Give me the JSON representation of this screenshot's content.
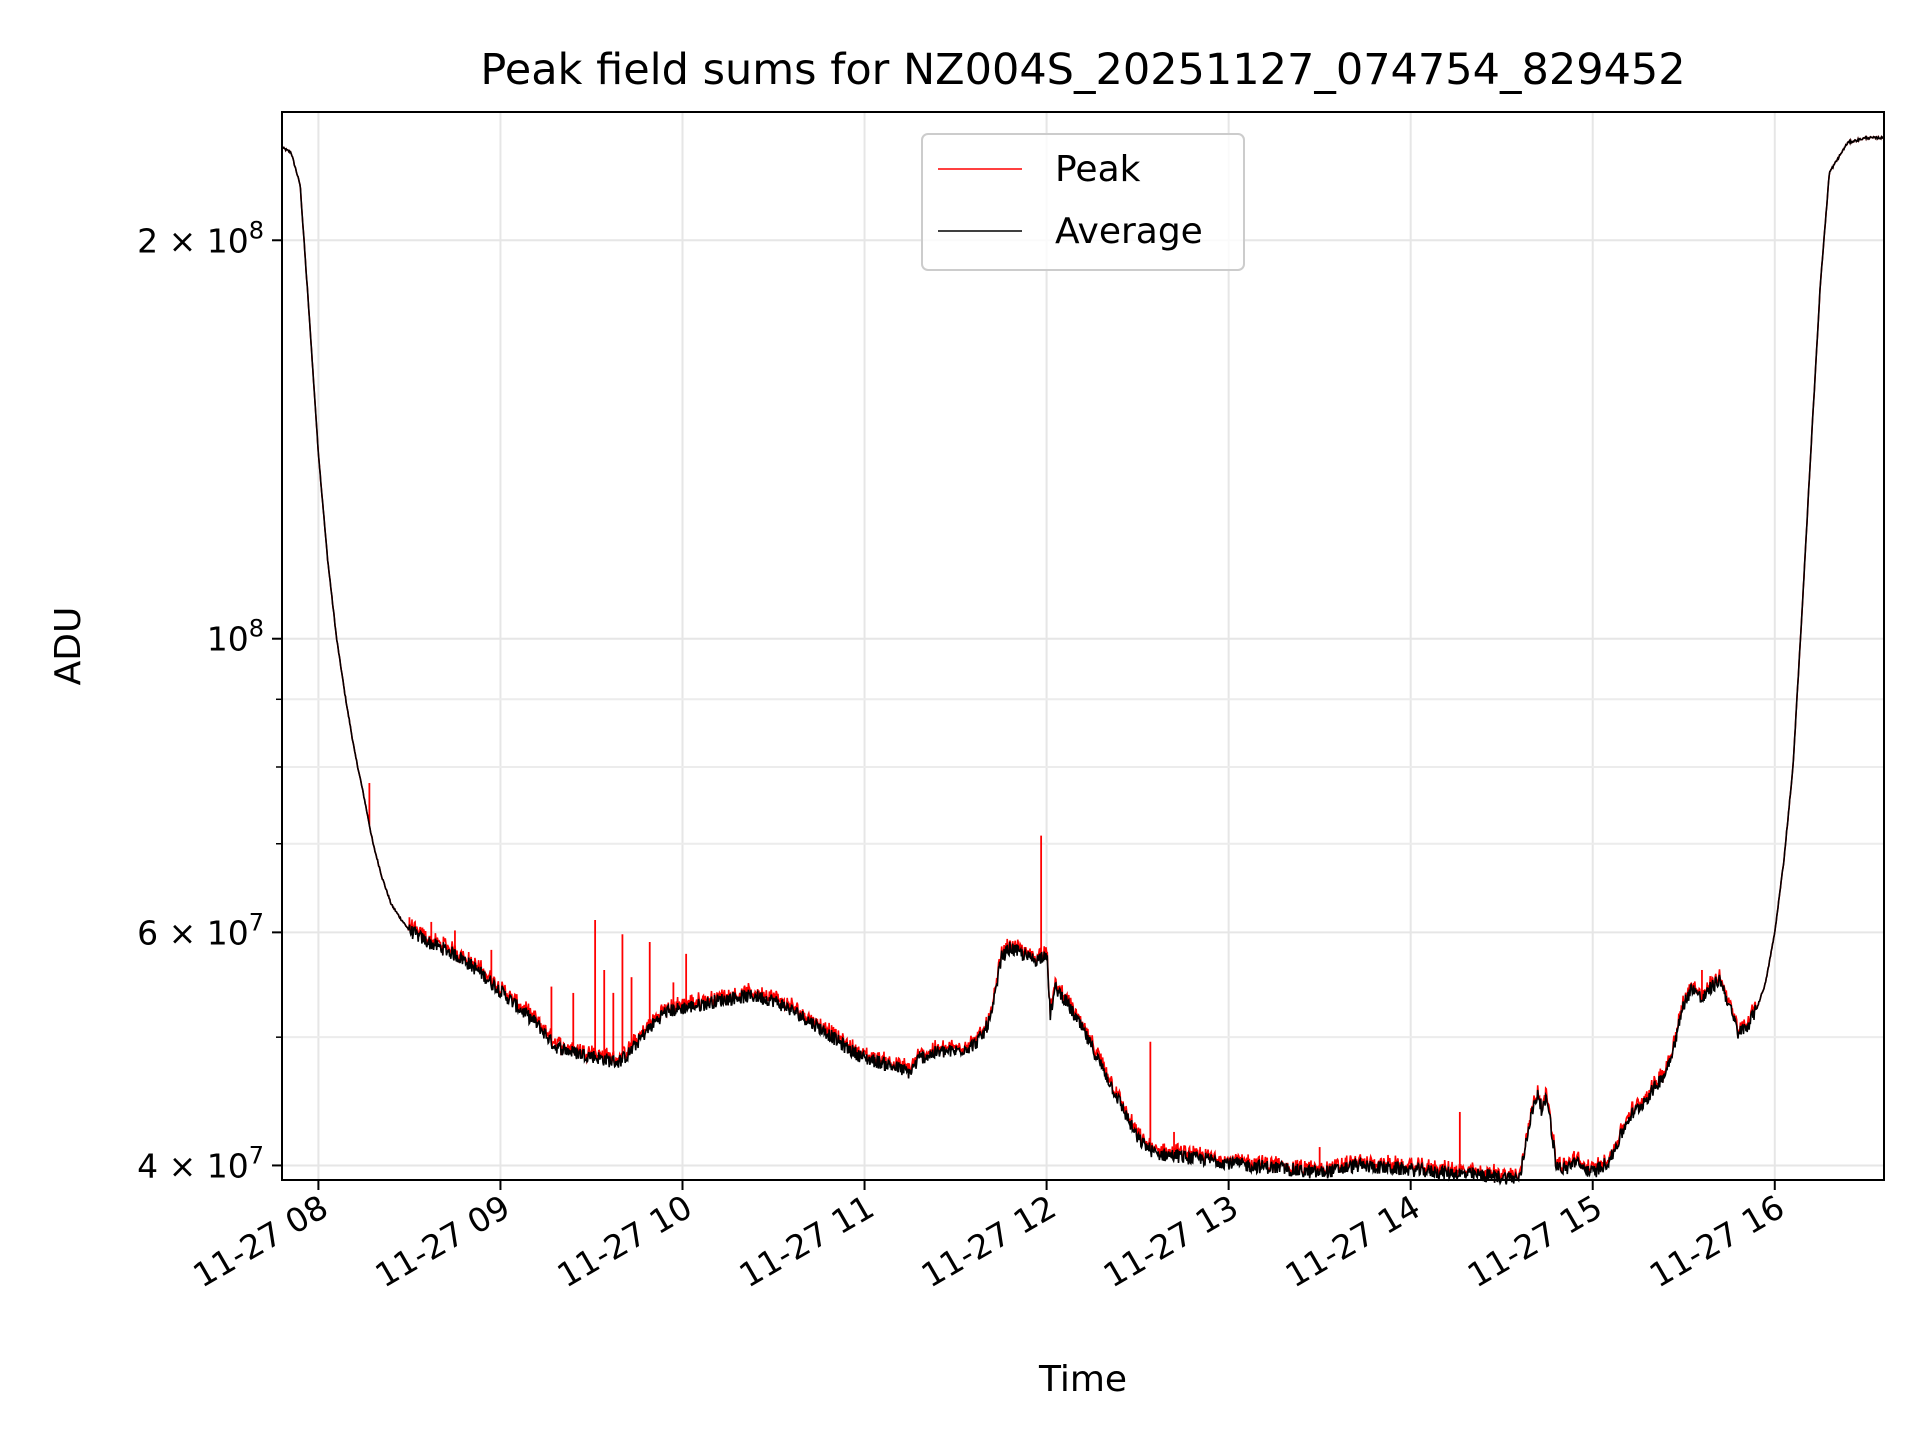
{
  "chart_data": {
    "type": "line",
    "title": "Peak field sums for NZ004S_20251127_074754_829452",
    "xlabel": "Time",
    "ylabel": "ADU",
    "yscale": "log",
    "grid": true,
    "legend_position": "top-center",
    "xlim_hours": [
      7.8,
      16.6
    ],
    "ylim": [
      39000000,
      250000000
    ],
    "x_ticks": [
      {
        "hour": 8,
        "label": "11-27 08"
      },
      {
        "hour": 9,
        "label": "11-27 09"
      },
      {
        "hour": 10,
        "label": "11-27 10"
      },
      {
        "hour": 11,
        "label": "11-27 11"
      },
      {
        "hour": 12,
        "label": "11-27 12"
      },
      {
        "hour": 13,
        "label": "11-27 13"
      },
      {
        "hour": 14,
        "label": "11-27 14"
      },
      {
        "hour": 15,
        "label": "11-27 15"
      },
      {
        "hour": 16,
        "label": "11-27 16"
      }
    ],
    "y_major_ticks": [
      {
        "value": 40000000,
        "base": "4 × 10",
        "exp": "7"
      },
      {
        "value": 60000000,
        "base": "6 × 10",
        "exp": "7"
      },
      {
        "value": 100000000,
        "base": "10",
        "exp": "8"
      },
      {
        "value": 200000000,
        "base": "2 × 10",
        "exp": "8"
      }
    ],
    "y_minor_ticks": [
      50000000,
      70000000,
      80000000,
      90000000
    ],
    "series": [
      {
        "name": "Average",
        "color": "#000000",
        "hours": [
          7.8,
          7.85,
          7.9,
          7.95,
          8.0,
          8.05,
          8.1,
          8.15,
          8.2,
          8.25,
          8.3,
          8.35,
          8.4,
          8.45,
          8.5,
          8.55,
          8.6,
          8.7,
          8.8,
          8.9,
          9.0,
          9.1,
          9.2,
          9.3,
          9.4,
          9.5,
          9.6,
          9.65,
          9.7,
          9.8,
          9.9,
          10.0,
          10.1,
          10.2,
          10.3,
          10.4,
          10.5,
          10.6,
          10.7,
          10.8,
          10.9,
          11.0,
          11.1,
          11.2,
          11.25,
          11.3,
          11.4,
          11.5,
          11.6,
          11.65,
          11.7,
          11.75,
          11.8,
          11.85,
          11.9,
          11.95,
          12.0,
          12.02,
          12.05,
          12.1,
          12.2,
          12.3,
          12.4,
          12.5,
          12.6,
          12.7,
          12.8,
          12.9,
          13.0,
          13.1,
          13.2,
          13.3,
          13.4,
          13.5,
          13.6,
          13.7,
          13.8,
          13.9,
          14.0,
          14.1,
          14.2,
          14.3,
          14.4,
          14.5,
          14.6,
          14.65,
          14.7,
          14.72,
          14.75,
          14.8,
          14.85,
          14.9,
          14.95,
          15.0,
          15.05,
          15.1,
          15.15,
          15.2,
          15.25,
          15.3,
          15.35,
          15.4,
          15.45,
          15.5,
          15.55,
          15.6,
          15.65,
          15.7,
          15.75,
          15.8,
          15.85,
          15.9,
          15.95,
          16.0,
          16.05,
          16.1,
          16.15,
          16.2,
          16.25,
          16.3,
          16.4,
          16.5,
          16.6
        ],
        "values": [
          235000000,
          233000000,
          220000000,
          175000000,
          138000000,
          115000000,
          100000000,
          90000000,
          82000000,
          76000000,
          70000000,
          66000000,
          63000000,
          61500000,
          60200000,
          59600000,
          59000000,
          58200000,
          57200000,
          55800000,
          54200000,
          52600000,
          51200000,
          49200000,
          48700000,
          48400000,
          48000000,
          47900000,
          48500000,
          50500000,
          52200000,
          52600000,
          52900000,
          53300000,
          53600000,
          53700000,
          53300000,
          52400000,
          51400000,
          50300000,
          49100000,
          48200000,
          47800000,
          47300000,
          47000000,
          48200000,
          48700000,
          48800000,
          49300000,
          50200000,
          52000000,
          57400000,
          58400000,
          57900000,
          57400000,
          57200000,
          58000000,
          52000000,
          54500000,
          53400000,
          50600000,
          47600000,
          44700000,
          41900000,
          40800000,
          40700000,
          40500000,
          40400000,
          40200000,
          40000000,
          39900000,
          39800000,
          39600000,
          39500000,
          39700000,
          40000000,
          39900000,
          39800000,
          39700000,
          39600000,
          39500000,
          39400000,
          39300000,
          39200000,
          39100000,
          43000000,
          45500000,
          44000000,
          45000000,
          40000000,
          39700000,
          40300000,
          39800000,
          39500000,
          39900000,
          40500000,
          42000000,
          43500000,
          44200000,
          45000000,
          46000000,
          47000000,
          49500000,
          53000000,
          54600000,
          53300000,
          54500000,
          55300000,
          52800000,
          50300000,
          51000000,
          52500000,
          55000000,
          60000000,
          68000000,
          80000000,
          105000000,
          140000000,
          185000000,
          225000000,
          237000000,
          239000000,
          239000000
        ]
      },
      {
        "name": "Peak",
        "color": "#ff0000",
        "spikes": [
          {
            "hour": 8.28,
            "value": 77800000
          },
          {
            "hour": 8.5,
            "value": 61600000
          },
          {
            "hour": 8.62,
            "value": 61100000
          },
          {
            "hour": 8.75,
            "value": 60200000
          },
          {
            "hour": 8.95,
            "value": 58200000
          },
          {
            "hour": 9.28,
            "value": 54600000
          },
          {
            "hour": 9.4,
            "value": 54000000
          },
          {
            "hour": 9.52,
            "value": 61300000
          },
          {
            "hour": 9.57,
            "value": 56200000
          },
          {
            "hour": 9.62,
            "value": 54000000
          },
          {
            "hour": 9.67,
            "value": 59800000
          },
          {
            "hour": 9.72,
            "value": 55500000
          },
          {
            "hour": 9.82,
            "value": 59000000
          },
          {
            "hour": 9.95,
            "value": 55000000
          },
          {
            "hour": 10.02,
            "value": 57800000
          },
          {
            "hour": 11.97,
            "value": 71000000
          },
          {
            "hour": 12.57,
            "value": 49600000
          },
          {
            "hour": 12.7,
            "value": 42400000
          },
          {
            "hour": 13.5,
            "value": 41300000
          },
          {
            "hour": 14.27,
            "value": 43900000
          },
          {
            "hour": 15.6,
            "value": 56200000
          }
        ]
      }
    ]
  }
}
